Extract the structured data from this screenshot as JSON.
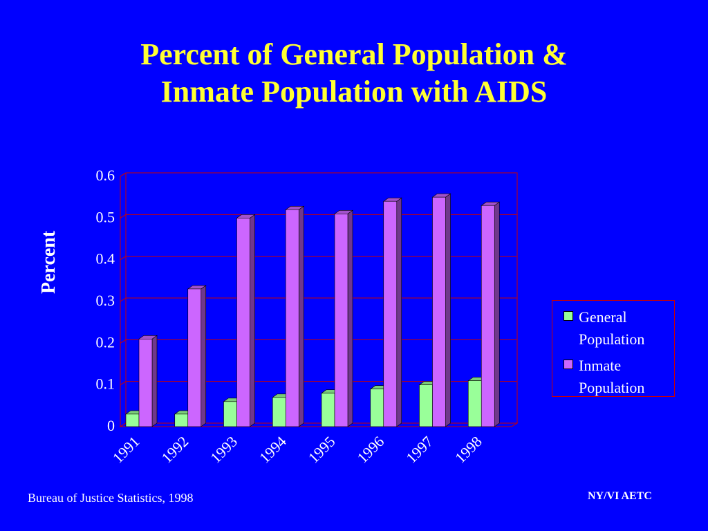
{
  "slide": {
    "title_line1": "Percent of General Population &",
    "title_line2": "Inmate Population with AIDS",
    "source": "Bureau of Justice Statistics, 1998",
    "credit": "NY/VI AETC"
  },
  "colors": {
    "background": "#0000ff",
    "title": "#ffff33",
    "text": "#ffffff",
    "grid": "#cc0000",
    "general": "#99ff99",
    "inmate": "#cc66ff"
  },
  "chart_data": {
    "type": "bar",
    "categories": [
      "1991",
      "1992",
      "1993",
      "1994",
      "1995",
      "1996",
      "1997",
      "1998"
    ],
    "series": [
      {
        "name": "General Population",
        "values": [
          0.03,
          0.03,
          0.06,
          0.07,
          0.08,
          0.09,
          0.1,
          0.11
        ]
      },
      {
        "name": "Inmate Population",
        "values": [
          0.21,
          0.33,
          0.5,
          0.52,
          0.51,
          0.54,
          0.55,
          0.53
        ]
      }
    ],
    "ylabel": "Percent",
    "ylim": [
      0,
      0.6
    ],
    "yticks": [
      "0",
      "0.1",
      "0.2",
      "0.3",
      "0.4",
      "0.5",
      "0.6"
    ],
    "grid": true,
    "legend_position": "right",
    "style": "3d"
  }
}
